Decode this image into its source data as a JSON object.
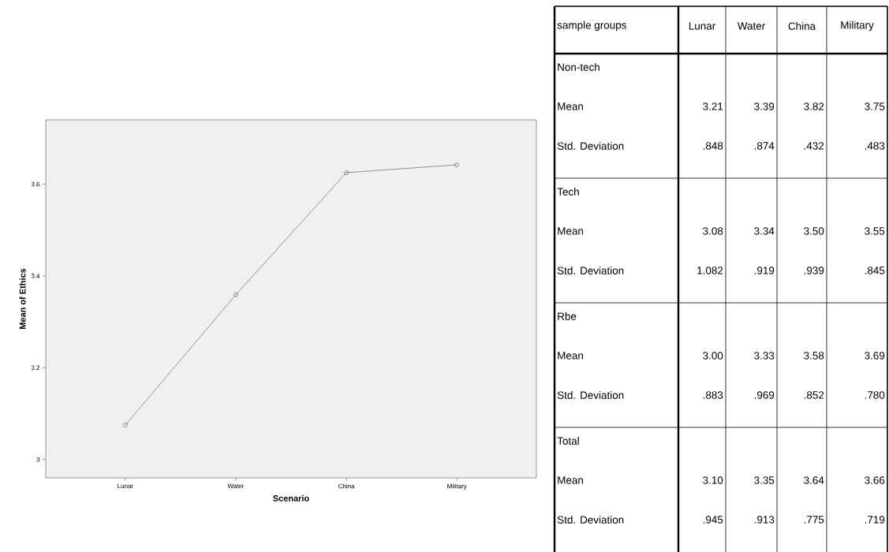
{
  "chart_data": [
    {
      "type": "line",
      "xlabel": "Scenario",
      "ylabel": "Mean of Ethics",
      "categories": [
        "Lunar",
        "Water",
        "China",
        "Military"
      ],
      "series": [
        {
          "color": "#000000",
          "values": [
            3.075,
            3.359,
            3.625,
            3.642
          ]
        }
      ],
      "ylim": [
        2.96,
        3.74
      ],
      "yticks": [
        3,
        3.2,
        3.4,
        3.6
      ],
      "marker": "circle",
      "line_style": "solid"
    },
    {
      "type": "other",
      "ylabel": "sample groups",
      "categories": [
        "Lunar",
        "Water",
        "China",
        "Military"
      ],
      "y_categories": [
        "Non-tech",
        "Mean",
        "Std. Deviation",
        "Tech",
        "Mean",
        "Std. Deviation",
        "Rbe",
        "Mean",
        "Std. Deviation",
        "Total",
        "Mean",
        "Std. Deviation"
      ],
      "cell_labels": [
        [
          null,
          null,
          null,
          null
        ],
        [
          "3.21",
          "3.39",
          "3.82",
          "3.75"
        ],
        [
          ".848",
          ".874",
          ".432",
          ".483"
        ],
        [
          null,
          null,
          null,
          null
        ],
        [
          "3.08",
          "3.34",
          "3.50",
          "3.55"
        ],
        [
          "1.082",
          ".919",
          ".939",
          ".845"
        ],
        [
          null,
          null,
          null,
          null
        ],
        [
          "3.00",
          "3.33",
          "3.58",
          "3.69"
        ],
        [
          ".883",
          ".969",
          ".852",
          ".780"
        ],
        [
          null,
          null,
          null,
          null
        ],
        [
          "3.10",
          "3.35",
          "3.64",
          "3.66"
        ],
        [
          ".945",
          ".913",
          ".775",
          ".719"
        ]
      ]
    }
  ]
}
